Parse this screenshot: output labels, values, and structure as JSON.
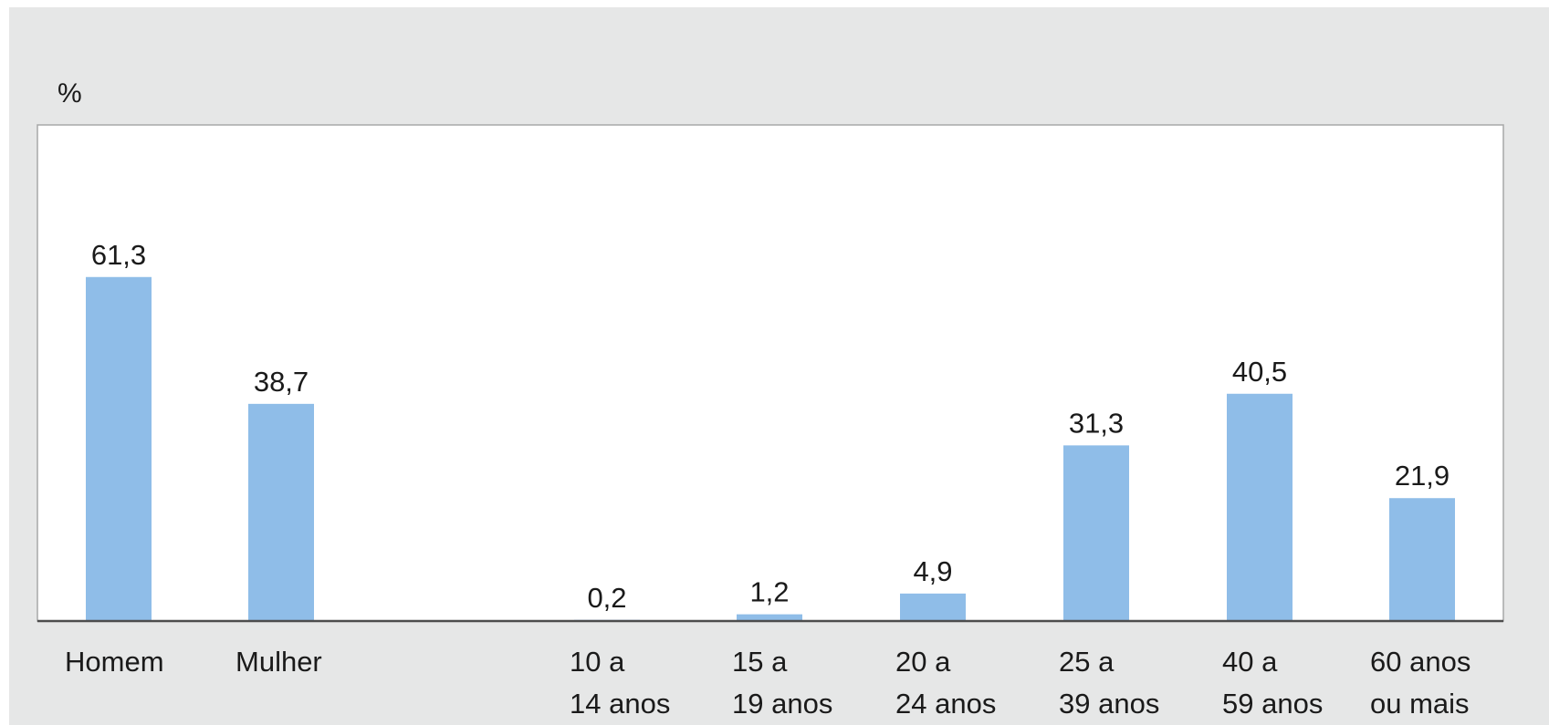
{
  "chart_data": {
    "type": "bar",
    "unit_label": "%",
    "categories": [
      [
        "Homem"
      ],
      [
        "Mulher"
      ],
      [
        "10 a",
        "14 anos"
      ],
      [
        "15 a",
        "19 anos"
      ],
      [
        "20 a",
        "24 anos"
      ],
      [
        "25 a",
        "39 anos"
      ],
      [
        "40 a",
        " 59 anos"
      ],
      [
        "60 anos",
        "ou mais"
      ]
    ],
    "values": [
      61.3,
      38.7,
      0.2,
      1.2,
      4.9,
      31.3,
      40.5,
      21.9
    ],
    "value_labels": [
      "61,3",
      "38,7",
      "0,2",
      "1,2",
      "4,9",
      "31,3",
      "40,5",
      "21,9"
    ],
    "ylim": [
      0,
      88.4
    ],
    "grid": false,
    "legend": "none",
    "colors": {
      "bar": "#8fbde8",
      "background": "#e6e7e7",
      "plot": "#ffffff"
    }
  }
}
